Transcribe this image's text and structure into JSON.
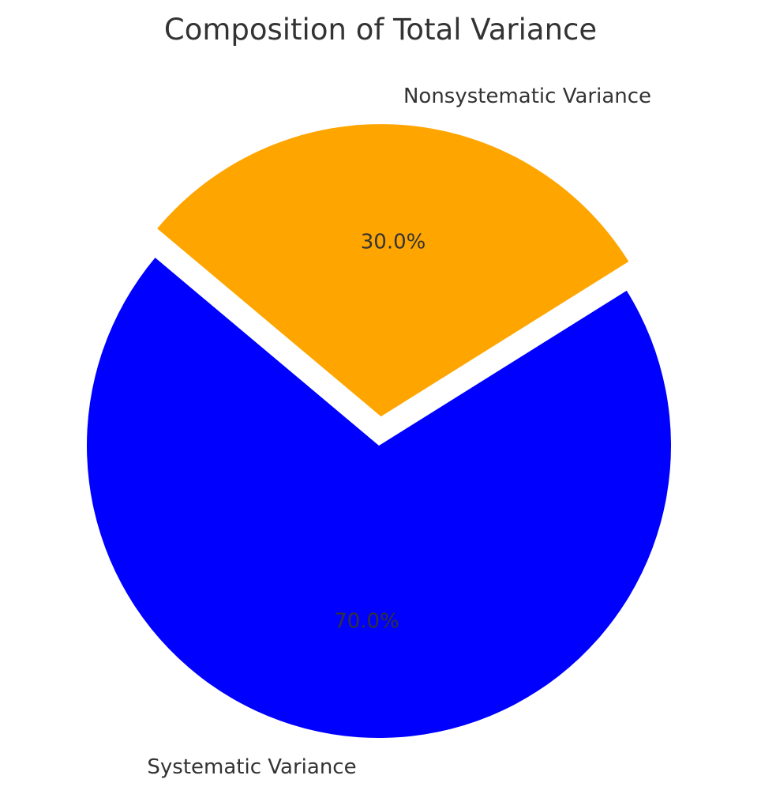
{
  "chart_data": {
    "type": "pie",
    "title": "Composition of Total Variance",
    "slices": [
      {
        "label": "Systematic Variance",
        "value": 70.0,
        "pct_label": "70.0%",
        "color": "#0000ff",
        "explode": 0
      },
      {
        "label": "Nonsystematic Variance",
        "value": 30.0,
        "pct_label": "30.0%",
        "color": "#ffa500",
        "explode": 0.1
      }
    ],
    "start_angle_deg": 140,
    "direction": "counterclockwise",
    "legend": "none"
  }
}
